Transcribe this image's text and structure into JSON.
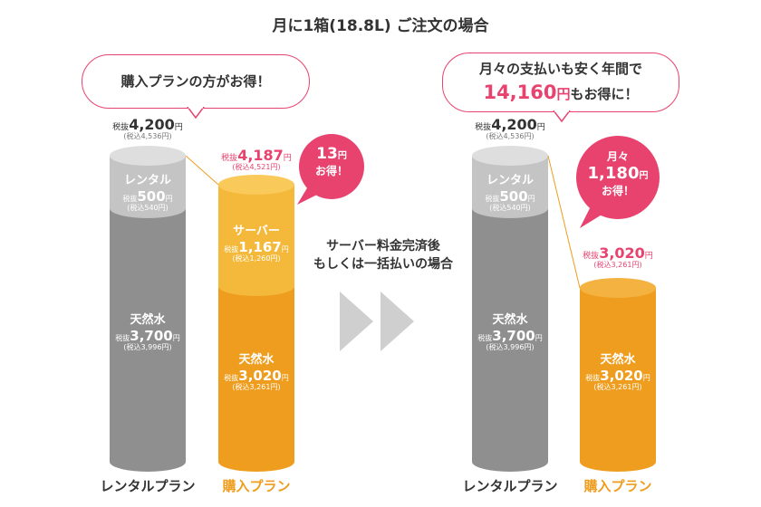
{
  "title": "月に1箱(18.8L) ご注文の場合",
  "left_bubble": {
    "text": "購入プランの方がお得！"
  },
  "right_bubble": {
    "line1": "月々の支払いも安く年間で",
    "amount": "14,160",
    "unit": "円",
    "suffix": "もお得に！"
  },
  "middle_note": {
    "line1": "サーバー料金完済後",
    "line2": "もしくは一括払いの場合"
  },
  "colors": {
    "gray_dark": "#8f8f8f",
    "gray_light": "#c4c4c4",
    "orange": "#ef9d1e",
    "orange_light": "#f4b93b",
    "pink": "#e8436f"
  },
  "left_group": {
    "rental": {
      "tax_label": "税抜",
      "total": "4,200",
      "unit": "円",
      "tax_incl": "(税込4,536円)",
      "segments": {
        "rental": {
          "name": "レンタル",
          "tax_label": "税抜",
          "price": "500",
          "unit": "円",
          "tax_incl": "(税込540円)"
        },
        "water": {
          "name": "天然水",
          "tax_label": "税抜",
          "price": "3,700",
          "unit": "円",
          "tax_incl": "(税込3,996円)"
        }
      },
      "caption": "レンタルプラン"
    },
    "purchase": {
      "tax_label": "税抜",
      "total": "4,187",
      "unit": "円",
      "tax_incl": "(税込4,521円)",
      "segments": {
        "server": {
          "name": "サーバー",
          "tax_label": "税抜",
          "price": "1,167",
          "unit": "円",
          "tax_incl": "(税込1,260円)"
        },
        "water": {
          "name": "天然水",
          "tax_label": "税抜",
          "price": "3,020",
          "unit": "円",
          "tax_incl": "(税込3,261円)"
        }
      },
      "caption": "購入プラン"
    },
    "badge": {
      "amount": "13",
      "unit": "円",
      "text": "お得！"
    }
  },
  "right_group": {
    "rental": {
      "tax_label": "税抜",
      "total": "4,200",
      "unit": "円",
      "tax_incl": "(税込4,536円)",
      "segments": {
        "rental": {
          "name": "レンタル",
          "tax_label": "税抜",
          "price": "500",
          "unit": "円",
          "tax_incl": "(税込540円)"
        },
        "water": {
          "name": "天然水",
          "tax_label": "税抜",
          "price": "3,700",
          "unit": "円",
          "tax_incl": "(税込3,996円)"
        }
      },
      "caption": "レンタルプラン"
    },
    "purchase": {
      "tax_label": "税抜",
      "total": "3,020",
      "unit": "円",
      "tax_incl": "(税込3,261円)",
      "segments": {
        "water": {
          "name": "天然水",
          "tax_label": "税抜",
          "price": "3,020",
          "unit": "円",
          "tax_incl": "(税込3,261円)"
        }
      },
      "caption": "購入プラン"
    },
    "badge": {
      "prefix": "月々",
      "amount": "1,180",
      "unit": "円",
      "text": "お得！"
    }
  }
}
